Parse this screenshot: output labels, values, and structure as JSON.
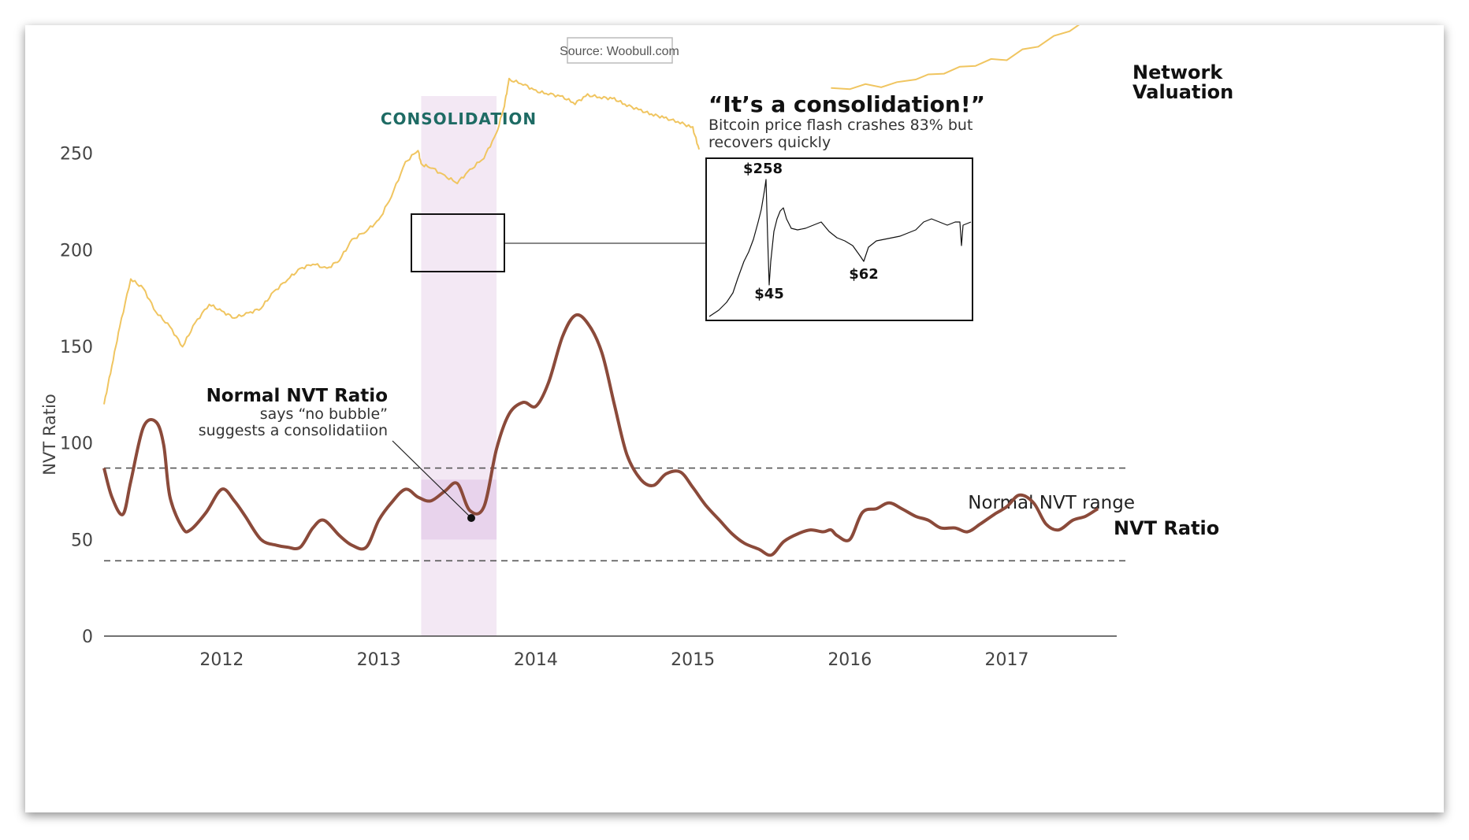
{
  "source": "Source: Woobull.com",
  "consolidation_label": "CONSOLIDATION",
  "callout": {
    "title": "“It’s a consolidation!”",
    "line1": "Bitcoin price flash crashes 83% but",
    "line2": "recovers quickly"
  },
  "inset": {
    "high_label": "$258",
    "low_label": "$45",
    "later_low_label": "$62"
  },
  "annotation": {
    "title": "Normal NVT Ratio",
    "line1": "says “no bubble”",
    "line2": "suggests a consolidatiion"
  },
  "colors": {
    "network_valuation": "#f0c560",
    "nvt_ratio": "#8b4a3a",
    "consolidation_band": "#f3e8f4",
    "consolidation_box": "#e8d3ec",
    "consolidation_text": "#1e6b64",
    "inset_line": "#111111"
  },
  "chart_data": {
    "type": "line",
    "title": "",
    "ylabel": "NVT Ratio",
    "xlabel": "",
    "ylim": [
      0,
      300
    ],
    "xlim": [
      2011.25,
      2017.7
    ],
    "y_ticks": [
      0,
      50,
      100,
      150,
      200,
      250
    ],
    "x_ticks": [
      "2012",
      "2013",
      "2014",
      "2015",
      "2016",
      "2017"
    ],
    "normal_range": {
      "low": 39,
      "high": 87,
      "label": "Normal NVT range"
    },
    "consolidation_period": {
      "start": 2013.27,
      "end": 2013.75,
      "nvt_box": [
        50,
        81
      ]
    },
    "series": [
      {
        "name": "NVT Ratio",
        "label": "NVT Ratio",
        "x": [
          2011.25,
          2011.3,
          2011.37,
          2011.42,
          2011.5,
          2011.58,
          2011.63,
          2011.67,
          2011.75,
          2011.8,
          2011.9,
          2012.0,
          2012.08,
          2012.15,
          2012.25,
          2012.35,
          2012.42,
          2012.5,
          2012.58,
          2012.65,
          2012.75,
          2012.83,
          2012.92,
          2013.0,
          2013.08,
          2013.17,
          2013.25,
          2013.33,
          2013.42,
          2013.5,
          2013.58,
          2013.67,
          2013.75,
          2013.83,
          2013.92,
          2014.0,
          2014.08,
          2014.17,
          2014.25,
          2014.33,
          2014.42,
          2014.5,
          2014.58,
          2014.67,
          2014.75,
          2014.83,
          2014.92,
          2015.0,
          2015.08,
          2015.17,
          2015.25,
          2015.33,
          2015.42,
          2015.5,
          2015.58,
          2015.67,
          2015.75,
          2015.83,
          2015.88,
          2015.92,
          2016.0,
          2016.08,
          2016.17,
          2016.25,
          2016.33,
          2016.42,
          2016.5,
          2016.58,
          2016.67,
          2016.75,
          2016.83,
          2016.92,
          2017.0,
          2017.08,
          2017.17,
          2017.25,
          2017.33,
          2017.42,
          2017.5,
          2017.58
        ],
        "values": [
          87,
          72,
          63,
          80,
          108,
          111,
          99,
          72,
          56,
          55,
          64,
          76,
          70,
          62,
          50,
          47,
          46,
          46,
          56,
          60,
          52,
          47,
          46,
          60,
          69,
          76,
          72,
          70,
          75,
          79,
          65,
          67,
          97,
          115,
          121,
          119,
          131,
          155,
          166,
          162,
          147,
          120,
          94,
          81,
          78,
          84,
          85,
          77,
          68,
          60,
          53,
          48,
          45,
          42,
          49,
          53,
          55,
          54,
          55,
          52,
          50,
          64,
          66,
          69,
          66,
          62,
          60,
          56,
          56,
          54,
          58,
          63,
          67,
          73,
          69,
          58,
          55,
          60,
          62,
          66
        ]
      },
      {
        "name": "Network Valuation",
        "label": "Network\nValuation",
        "x": [
          2011.25,
          2011.3,
          2011.35,
          2011.42,
          2011.5,
          2011.58,
          2011.67,
          2011.75,
          2011.83,
          2011.92,
          2012.0,
          2012.08,
          2012.17,
          2012.25,
          2012.33,
          2012.42,
          2012.5,
          2012.58,
          2012.67,
          2012.75,
          2012.83,
          2012.92,
          2013.0,
          2013.08,
          2013.17,
          2013.25,
          2013.27,
          2013.33,
          2013.42,
          2013.5,
          2013.58,
          2013.67,
          2013.75,
          2013.8,
          2013.83,
          2013.92,
          2014.0,
          2014.08,
          2014.17,
          2014.25,
          2014.33,
          2014.42,
          2014.5,
          2014.58,
          2014.67,
          2014.75,
          2014.83,
          2014.92,
          2015.0,
          2015.04
        ],
        "values": [
          120,
          140,
          160,
          185,
          180,
          168,
          160,
          150,
          162,
          172,
          168,
          165,
          167,
          170,
          178,
          185,
          190,
          193,
          190,
          195,
          205,
          210,
          215,
          228,
          245,
          252,
          244,
          243,
          238,
          235,
          241,
          248,
          260,
          275,
          288,
          286,
          282,
          281,
          279,
          276,
          280,
          279,
          278,
          275,
          272,
          270,
          268,
          266,
          263,
          252
        ]
      }
    ]
  }
}
